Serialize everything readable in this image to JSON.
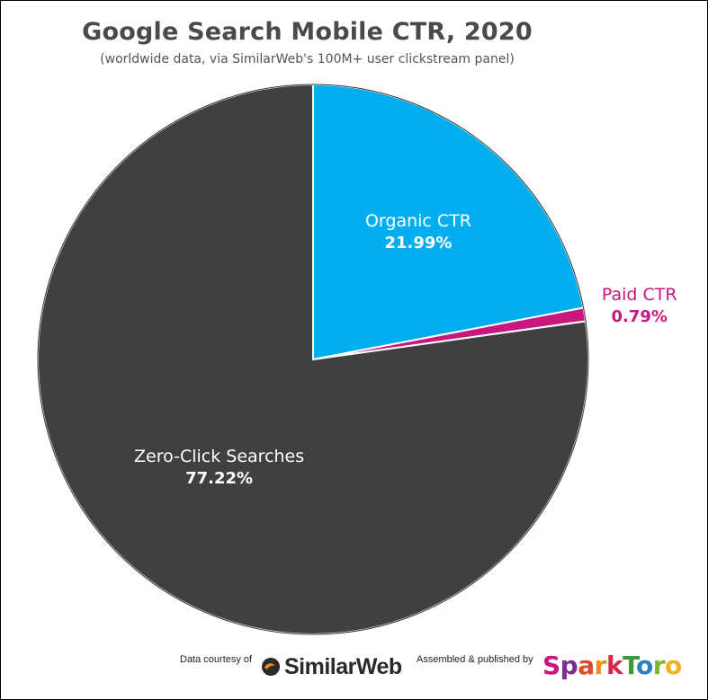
{
  "chart_data": {
    "type": "pie",
    "title": "Google Search Mobile CTR, 2020",
    "subtitle": "(worldwide data, via SimilarWeb's 100M+ user clickstream panel)",
    "slices": [
      {
        "name": "Organic CTR",
        "value": 21.99,
        "label": "21.99%",
        "color": "#00adef",
        "label_color": "#ffffff"
      },
      {
        "name": "Paid CTR",
        "value": 0.79,
        "label": "0.79%",
        "color": "#c8177f",
        "label_color": "#c8177f"
      },
      {
        "name": "Zero-Click Searches",
        "value": 77.22,
        "label": "77.22%",
        "color": "#404040",
        "label_color": "#ffffff"
      }
    ]
  },
  "footer": {
    "courtesy_text": "Data courtesy of",
    "courtesy_brand": "SimilarWeb",
    "published_text": "Assembled & published by",
    "published_brand_parts": [
      {
        "text": "S",
        "color": "#c8177f"
      },
      {
        "text": "p",
        "color": "#7b2e8e"
      },
      {
        "text": "a",
        "color": "#e04a2a"
      },
      {
        "text": "r",
        "color": "#f28c1e"
      },
      {
        "text": "k",
        "color": "#d42a4a"
      },
      {
        "text": "T",
        "color": "#3c9a3a"
      },
      {
        "text": "o",
        "color": "#2b7fc2"
      },
      {
        "text": "r",
        "color": "#7cb82f"
      },
      {
        "text": "o",
        "color": "#f2b21e"
      }
    ]
  }
}
